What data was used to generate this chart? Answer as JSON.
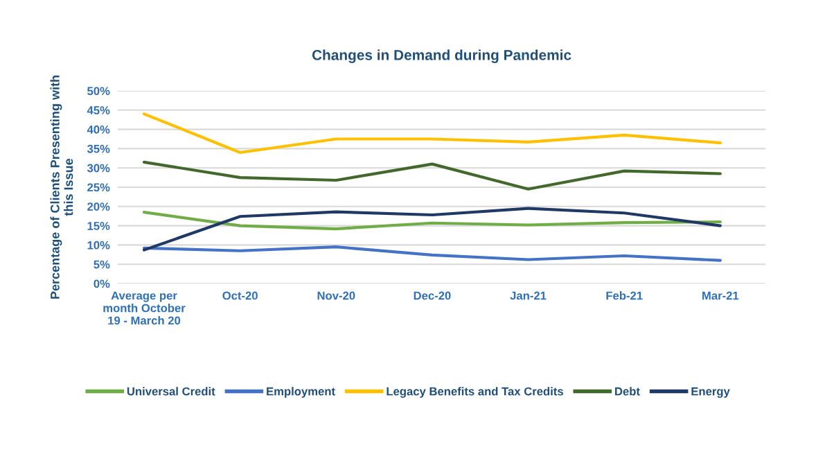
{
  "chart_data": {
    "type": "line",
    "title": "Changes in Demand during Pandemic",
    "ylabel": "Percentage of Clients Presenting with this Issue",
    "categories": [
      "Average per month October 19 - March 20",
      "Oct-20",
      "Nov-20",
      "Dec-20",
      "Jan-21",
      "Feb-21",
      "Mar-21"
    ],
    "series": [
      {
        "name": "Universal Credit",
        "color": "#70ad47",
        "values": [
          18.5,
          15,
          14.2,
          15.7,
          15.2,
          15.8,
          16
        ]
      },
      {
        "name": "Employment",
        "color": "#4472c4",
        "values": [
          9.2,
          8.5,
          9.5,
          7.4,
          6.2,
          7.2,
          6
        ]
      },
      {
        "name": "Legacy Benefits and Tax Credits",
        "color": "#ffc000",
        "values": [
          44,
          34,
          37.5,
          37.5,
          36.7,
          38.5,
          36.5
        ]
      },
      {
        "name": "Debt",
        "color": "#43682b",
        "values": [
          31.5,
          27.5,
          26.8,
          31,
          24.5,
          29.2,
          28.5
        ]
      },
      {
        "name": "Energy",
        "color": "#203864",
        "values": [
          8.7,
          17.4,
          18.6,
          17.8,
          19.5,
          18.3,
          15
        ]
      }
    ],
    "ylim": [
      0,
      50
    ],
    "yticks": [
      {
        "value": 0,
        "label": "0%"
      },
      {
        "value": 5,
        "label": "5%"
      },
      {
        "value": 10,
        "label": "10%"
      },
      {
        "value": 15,
        "label": "15%"
      },
      {
        "value": 20,
        "label": "20%"
      },
      {
        "value": 25,
        "label": "25%"
      },
      {
        "value": 30,
        "label": "30%"
      },
      {
        "value": 35,
        "label": "35%"
      },
      {
        "value": 40,
        "label": "40%"
      },
      {
        "value": 45,
        "label": "45%"
      },
      {
        "value": 50,
        "label": "50%"
      }
    ],
    "grid": "y",
    "legend": "bottom",
    "marker": "none",
    "line_style": "solid"
  }
}
